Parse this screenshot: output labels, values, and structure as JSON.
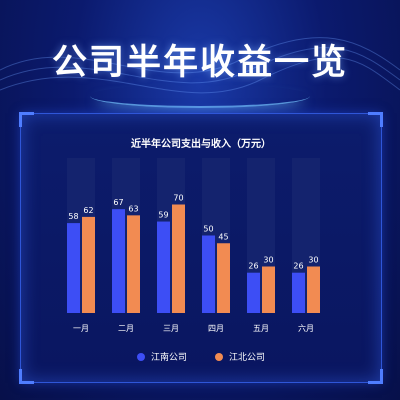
{
  "page": {
    "title": "公司半年收益一览"
  },
  "chart_data": {
    "type": "bar",
    "title": "近半年公司支出与收入（万元）",
    "categories": [
      "一月",
      "二月",
      "三月",
      "四月",
      "五月",
      "六月"
    ],
    "series": [
      {
        "name": "江南公司",
        "values": [
          58,
          67,
          59,
          50,
          26,
          26
        ],
        "color": "#3d4ef5"
      },
      {
        "name": "江北公司",
        "values": [
          62,
          63,
          70,
          45,
          30,
          30
        ],
        "color": "#f28b52"
      }
    ],
    "ylim": [
      0,
      100
    ],
    "grid": false,
    "legend_position": "bottom",
    "track_color": "#14236e"
  }
}
